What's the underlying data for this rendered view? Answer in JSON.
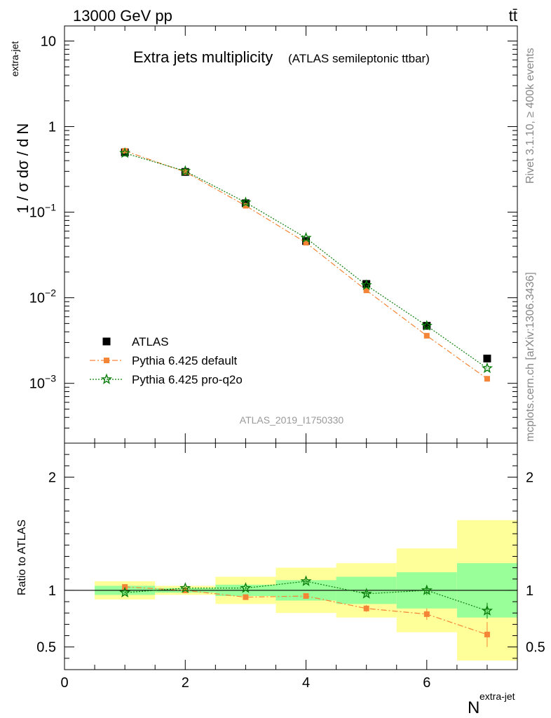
{
  "header": {
    "energy_label": "13000 GeV pp",
    "process_label": "tt̄"
  },
  "side_labels": {
    "rivet": "Rivet 3.1.10, ≥ 400k events",
    "mcplots": "mcplots.cern.ch [arXiv:1306.3436]"
  },
  "chart_data": [
    {
      "type": "scatter",
      "title": "Extra jets multiplicity",
      "subtitle": "(ATLAS semileptonic ttbar)",
      "analysis_label": "ATLAS_2019_I1750330",
      "ylabel_main": "1 / σ dσ / d N",
      "ylabel_sup": "extra-jet",
      "xlabel_main": "N",
      "xlabel_sup": "extra-jet",
      "xlim": [
        0,
        7.5
      ],
      "ylim": [
        0.0002,
        15
      ],
      "yscale": "log",
      "yticks": [
        {
          "v": 0.001,
          "base": "10",
          "exp": "−3"
        },
        {
          "v": 0.01,
          "base": "10",
          "exp": "−2"
        },
        {
          "v": 0.1,
          "base": "10",
          "exp": "−1"
        },
        {
          "v": 1,
          "base": "1",
          "exp": ""
        },
        {
          "v": 10,
          "base": "10",
          "exp": ""
        }
      ],
      "legend_position": "bottom-left",
      "series": [
        {
          "name": "ATLAS",
          "color": "#000000",
          "marker": "square",
          "x": [
            1,
            2,
            3,
            4,
            5,
            6,
            7
          ],
          "y": [
            0.5,
            0.295,
            0.127,
            0.046,
            0.0145,
            0.0047,
            0.00195
          ]
        },
        {
          "name": "Pythia 6.425 default",
          "color": "#f58536",
          "marker": "square-small",
          "line": "dashdot",
          "x": [
            1,
            2,
            3,
            4,
            5,
            6,
            7
          ],
          "y": [
            0.52,
            0.295,
            0.119,
            0.044,
            0.0122,
            0.0036,
            0.00113
          ]
        },
        {
          "name": "Pythia 6.425 pro-q2o",
          "color": "#0a7d0a",
          "marker": "star",
          "line": "dotted",
          "x": [
            1,
            2,
            3,
            4,
            5,
            6,
            7
          ],
          "y": [
            0.49,
            0.302,
            0.13,
            0.05,
            0.014,
            0.0047,
            0.0015
          ]
        }
      ]
    },
    {
      "type": "scatter",
      "ylabel": "Ratio to ATLAS",
      "xlim": [
        0,
        7.5
      ],
      "ylim": [
        0.3,
        2.3
      ],
      "xticks": [
        "0",
        "2",
        "4",
        "6"
      ],
      "yticks": [
        "0.5",
        "1",
        "2"
      ],
      "reference_line": 1,
      "bands": [
        {
          "x0": 0.5,
          "x1": 1.5,
          "yellow": [
            0.92,
            1.08
          ],
          "green": [
            0.96,
            1.04
          ]
        },
        {
          "x0": 1.5,
          "x1": 2.5,
          "yellow": [
            0.96,
            1.04
          ],
          "green": [
            0.98,
            1.02
          ]
        },
        {
          "x0": 2.5,
          "x1": 3.5,
          "yellow": [
            0.88,
            1.12
          ],
          "green": [
            0.95,
            1.05
          ]
        },
        {
          "x0": 3.5,
          "x1": 4.5,
          "yellow": [
            0.8,
            1.2
          ],
          "green": [
            0.91,
            1.09
          ]
        },
        {
          "x0": 4.5,
          "x1": 5.5,
          "yellow": [
            0.76,
            1.24
          ],
          "green": [
            0.88,
            1.12
          ]
        },
        {
          "x0": 5.5,
          "x1": 6.5,
          "yellow": [
            0.63,
            1.37
          ],
          "green": [
            0.84,
            1.16
          ]
        },
        {
          "x0": 6.5,
          "x1": 7.5,
          "yellow": [
            0.38,
            1.62
          ],
          "green": [
            0.76,
            1.24
          ]
        }
      ],
      "series": [
        {
          "name": "Pythia 6.425 default",
          "color": "#f58536",
          "x": [
            1,
            2,
            3,
            4,
            5,
            6,
            7
          ],
          "y": [
            1.03,
            1.0,
            0.94,
            0.95,
            0.84,
            0.79,
            0.61
          ],
          "err": [
            0.01,
            0.01,
            0.01,
            0.01,
            0.03,
            0.05,
            0.11
          ]
        },
        {
          "name": "Pythia 6.425 pro-q2o",
          "color": "#0a7d0a",
          "x": [
            1,
            2,
            3,
            4,
            5,
            6,
            7
          ],
          "y": [
            0.98,
            1.02,
            1.02,
            1.08,
            0.97,
            1.0,
            0.82
          ],
          "err": [
            0.01,
            0.01,
            0.01,
            0.015,
            0.02,
            0.04,
            0.07
          ]
        }
      ]
    }
  ]
}
